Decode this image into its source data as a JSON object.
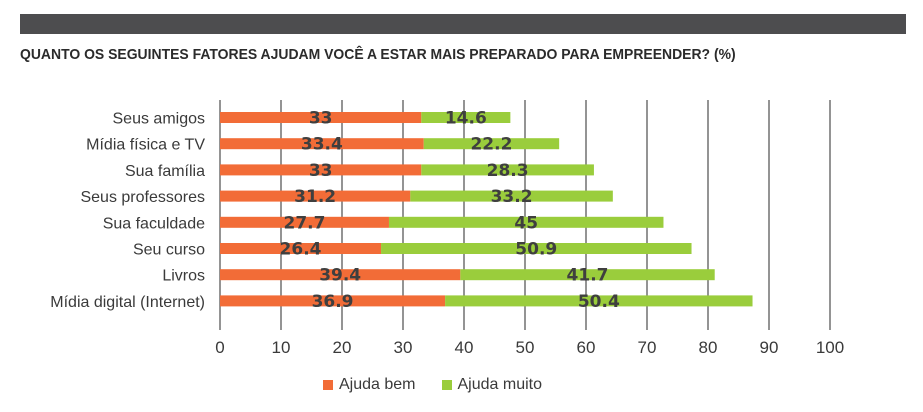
{
  "chart_data": {
    "type": "bar",
    "orientation": "horizontal",
    "stacked": true,
    "title": "QUANTO OS SEGUINTES FATORES AJUDAM VOCÊ A ESTAR MAIS PREPARADO PARA EMPREENDER? (%)",
    "categories": [
      "Seus amigos",
      "Mídia física e TV",
      "Sua família",
      "Seus professores",
      "Sua faculdade",
      "Seu curso",
      "Livros",
      "Mídia digital (Internet)"
    ],
    "series": [
      {
        "name": "Ajuda bem",
        "color": "#f26c37",
        "values": [
          33,
          33.4,
          33,
          31.2,
          27.7,
          26.4,
          39.4,
          36.9
        ]
      },
      {
        "name": "Ajuda muito",
        "color": "#9acd3c",
        "values": [
          14.6,
          22.2,
          28.3,
          33.2,
          45,
          50.9,
          41.7,
          50.4
        ]
      }
    ],
    "data_labels": [
      [
        "33",
        "33.4",
        "33",
        "31.2",
        "27.7",
        "26.4",
        "39.4",
        "36.9"
      ],
      [
        "14.6",
        "22.2",
        "28.3",
        "33.2",
        "45",
        "50.9",
        "41.7",
        "50.4"
      ]
    ],
    "xlim": [
      0,
      100
    ],
    "xticks": [
      "0",
      "10",
      "20",
      "30",
      "40",
      "50",
      "60",
      "70",
      "80",
      "90",
      "100"
    ],
    "grid": "vertical",
    "legend_position": "bottom"
  }
}
